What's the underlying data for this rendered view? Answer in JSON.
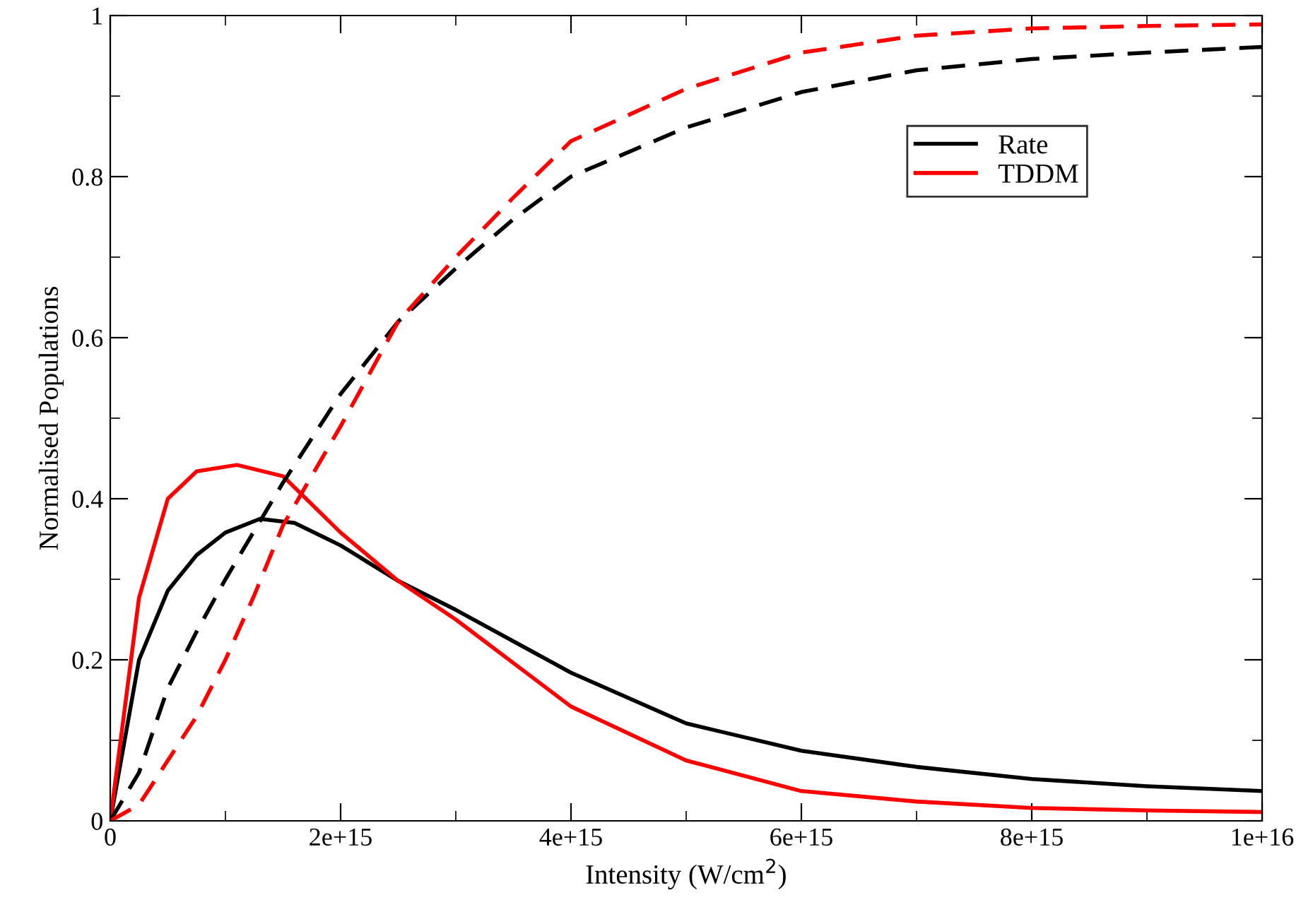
{
  "chart_data": {
    "type": "line",
    "xlabel": "Intensity (W/cm$^{2}$)",
    "ylabel": "Normalised Populations",
    "xlim": [
      0,
      1e+16
    ],
    "ylim": [
      0,
      1
    ],
    "xticks": [
      0,
      {
        "value": 2000000000000000.0,
        "label": "2e+15"
      },
      {
        "value": 4000000000000000.0,
        "label": "4e+15"
      },
      {
        "value": 6000000000000000.0,
        "label": "6e+15"
      },
      {
        "value": 8000000000000000.0,
        "label": "8e+15"
      },
      {
        "value": 1e+16,
        "label": "1e+16"
      }
    ],
    "yticks": [
      0,
      0.2,
      0.4,
      0.6,
      0.8,
      1
    ],
    "grid": false,
    "legend": "top right",
    "marker": "none",
    "series": [
      {
        "name": "Rate",
        "color": "#000000",
        "line_style": "solid",
        "x": [
          0,
          250000000000000.0,
          500000000000000.0,
          750000000000000.0,
          1000000000000000.0,
          1300000000000000.0,
          1600000000000000.0,
          2000000000000000.0,
          2500000000000000.0,
          3000000000000000.0,
          4000000000000000.0,
          5000000000000000.0,
          6000000000000000.0,
          7000000000000000.0,
          8000000000000000.0,
          9000000000000000.0,
          1e+16
        ],
        "values": [
          0,
          0.2,
          0.286,
          0.33,
          0.358,
          0.375,
          0.37,
          0.342,
          0.298,
          0.262,
          0.184,
          0.121,
          0.087,
          0.067,
          0.052,
          0.043,
          0.037
        ]
      },
      {
        "name": "TDDM",
        "color": "#ff0000",
        "line_style": "solid",
        "x": [
          0,
          250000000000000.0,
          500000000000000.0,
          750000000000000.0,
          1100000000000000.0,
          1500000000000000.0,
          2000000000000000.0,
          2500000000000000.0,
          3000000000000000.0,
          4000000000000000.0,
          5000000000000000.0,
          6000000000000000.0,
          7000000000000000.0,
          8000000000000000.0,
          9000000000000000.0,
          1e+16
        ],
        "values": [
          0,
          0.277,
          0.4,
          0.434,
          0.442,
          0.428,
          0.358,
          0.298,
          0.25,
          0.142,
          0.075,
          0.037,
          0.024,
          0.016,
          0.013,
          0.011
        ]
      },
      {
        "color": "#000000",
        "line_style": "dashed",
        "x": [
          0,
          250000000000000.0,
          500000000000000.0,
          750000000000000.0,
          1000000000000000.0,
          1250000000000000.0,
          1500000000000000.0,
          2000000000000000.0,
          2500000000000000.0,
          3000000000000000.0,
          3500000000000000.0,
          4000000000000000.0,
          5000000000000000.0,
          6000000000000000.0,
          7000000000000000.0,
          8000000000000000.0,
          9000000000000000.0,
          1e+16
        ],
        "values": [
          0,
          0.06,
          0.165,
          0.235,
          0.3,
          0.36,
          0.42,
          0.53,
          0.62,
          0.686,
          0.747,
          0.8,
          0.861,
          0.905,
          0.932,
          0.946,
          0.954,
          0.961
        ]
      },
      {
        "color": "#ff0000",
        "line_style": "dashed",
        "x": [
          0,
          250000000000000.0,
          500000000000000.0,
          750000000000000.0,
          1000000000000000.0,
          1250000000000000.0,
          1500000000000000.0,
          2000000000000000.0,
          2500000000000000.0,
          3000000000000000.0,
          3500000000000000.0,
          4000000000000000.0,
          5000000000000000.0,
          6000000000000000.0,
          7000000000000000.0,
          8000000000000000.0,
          9000000000000000.0,
          1e+16
        ],
        "values": [
          0,
          0.02,
          0.075,
          0.13,
          0.2,
          0.28,
          0.367,
          0.49,
          0.62,
          0.7,
          0.774,
          0.844,
          0.909,
          0.954,
          0.975,
          0.984,
          0.987,
          0.989
        ]
      }
    ]
  }
}
